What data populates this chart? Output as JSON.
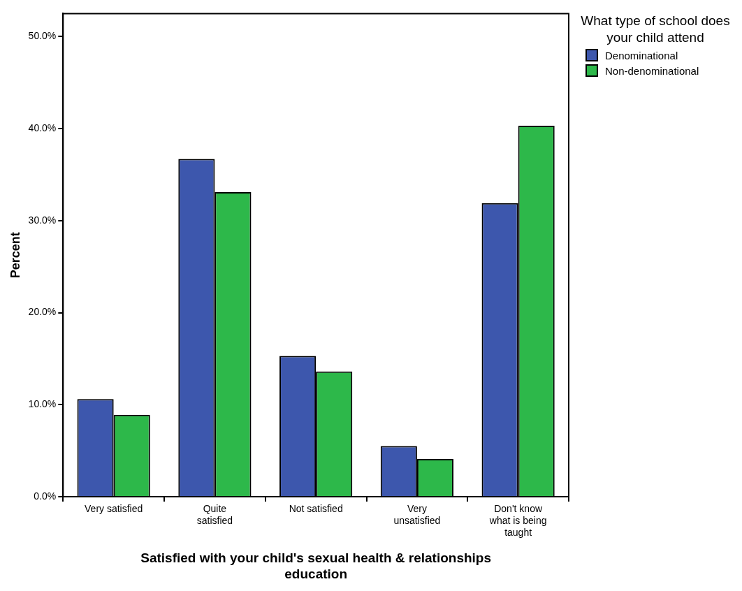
{
  "chart_data": {
    "type": "bar",
    "xlabel": "Satisfied with your child's sexual health & relationships education",
    "ylabel": "Percent",
    "legend_title": "What type of school does your child attend",
    "legend": "top right",
    "categories": [
      "Very satisfied",
      "Quite satisfied",
      "Not satisfied",
      "Very unsatisfied",
      "Don't know what is being taught"
    ],
    "series": [
      {
        "name": "Denominational",
        "color": "#3d57ad",
        "values": [
          10.6,
          36.7,
          15.3,
          5.5,
          31.9
        ]
      },
      {
        "name": "Non-denominational",
        "color": "#2db84a",
        "values": [
          8.9,
          33.1,
          13.6,
          4.1,
          40.3
        ]
      }
    ],
    "ylim": [
      0,
      52.5
    ],
    "yticks": [
      {
        "value": 0,
        "label": "0.0%"
      },
      {
        "value": 10,
        "label": "10.0%"
      },
      {
        "value": 20,
        "label": "20.0%"
      },
      {
        "value": 30,
        "label": "30.0%"
      },
      {
        "value": 40,
        "label": "40.0%"
      },
      {
        "value": 50,
        "label": "50.0%"
      }
    ]
  }
}
